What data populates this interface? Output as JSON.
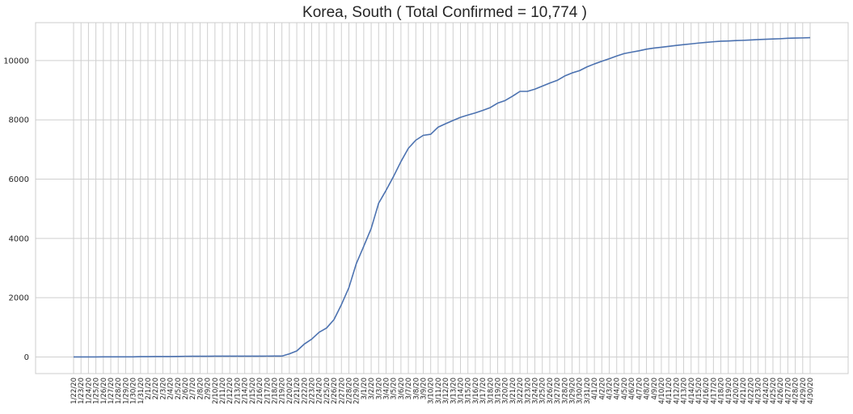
{
  "chart_data": {
    "type": "line",
    "title": "Korea, South ( Total Confirmed = 10,774 )",
    "xlabel": "",
    "ylabel": "",
    "ylim": [
      -560,
      11280
    ],
    "yticks": [
      0,
      2000,
      4000,
      6000,
      8000,
      10000
    ],
    "grid": true,
    "legend": "none",
    "colors": {
      "line": "#4c72b0",
      "grid": "#cfcfcf",
      "frame": "#cccccc",
      "text": "#262626"
    },
    "categories": [
      "1/22/20",
      "1/23/20",
      "1/24/20",
      "1/25/20",
      "1/26/20",
      "1/27/20",
      "1/28/20",
      "1/29/20",
      "1/30/20",
      "1/31/20",
      "2/1/20",
      "2/2/20",
      "2/3/20",
      "2/4/20",
      "2/5/20",
      "2/6/20",
      "2/7/20",
      "2/8/20",
      "2/9/20",
      "2/10/20",
      "2/11/20",
      "2/12/20",
      "2/13/20",
      "2/14/20",
      "2/15/20",
      "2/16/20",
      "2/17/20",
      "2/18/20",
      "2/19/20",
      "2/20/20",
      "2/21/20",
      "2/22/20",
      "2/23/20",
      "2/24/20",
      "2/25/20",
      "2/26/20",
      "2/27/20",
      "2/28/20",
      "2/29/20",
      "3/1/20",
      "3/2/20",
      "3/3/20",
      "3/4/20",
      "3/5/20",
      "3/6/20",
      "3/7/20",
      "3/8/20",
      "3/9/20",
      "3/10/20",
      "3/11/20",
      "3/12/20",
      "3/13/20",
      "3/14/20",
      "3/15/20",
      "3/16/20",
      "3/17/20",
      "3/18/20",
      "3/19/20",
      "3/20/20",
      "3/21/20",
      "3/22/20",
      "3/23/20",
      "3/24/20",
      "3/25/20",
      "3/26/20",
      "3/27/20",
      "3/28/20",
      "3/29/20",
      "3/30/20",
      "3/31/20",
      "4/1/20",
      "4/2/20",
      "4/3/20",
      "4/4/20",
      "4/5/20",
      "4/6/20",
      "4/7/20",
      "4/8/20",
      "4/9/20",
      "4/10/20",
      "4/11/20",
      "4/12/20",
      "4/13/20",
      "4/14/20",
      "4/15/20",
      "4/16/20",
      "4/17/20",
      "4/18/20",
      "4/19/20",
      "4/20/20",
      "4/21/20",
      "4/22/20",
      "4/23/20",
      "4/24/20",
      "4/25/20",
      "4/26/20",
      "4/27/20",
      "4/28/20",
      "4/29/20",
      "4/30/20"
    ],
    "values": [
      1,
      1,
      2,
      2,
      3,
      4,
      4,
      4,
      4,
      11,
      12,
      15,
      15,
      16,
      19,
      23,
      24,
      24,
      25,
      27,
      28,
      28,
      28,
      28,
      28,
      29,
      30,
      31,
      31,
      104,
      204,
      433,
      602,
      833,
      977,
      1261,
      1766,
      2337,
      3150,
      3736,
      4335,
      5186,
      5621,
      6088,
      6593,
      7041,
      7314,
      7478,
      7513,
      7755,
      7869,
      7979,
      8086,
      8162,
      8236,
      8320,
      8413,
      8565,
      8652,
      8799,
      8961,
      8961,
      9037,
      9137,
      9241,
      9332,
      9478,
      9583,
      9661,
      9786,
      9887,
      9976,
      10062,
      10156,
      10237,
      10284,
      10331,
      10384,
      10423,
      10450,
      10480,
      10512,
      10537,
      10564,
      10591,
      10613,
      10635,
      10653,
      10661,
      10674,
      10683,
      10694,
      10708,
      10718,
      10728,
      10738,
      10752,
      10761,
      10765,
      10774
    ]
  }
}
